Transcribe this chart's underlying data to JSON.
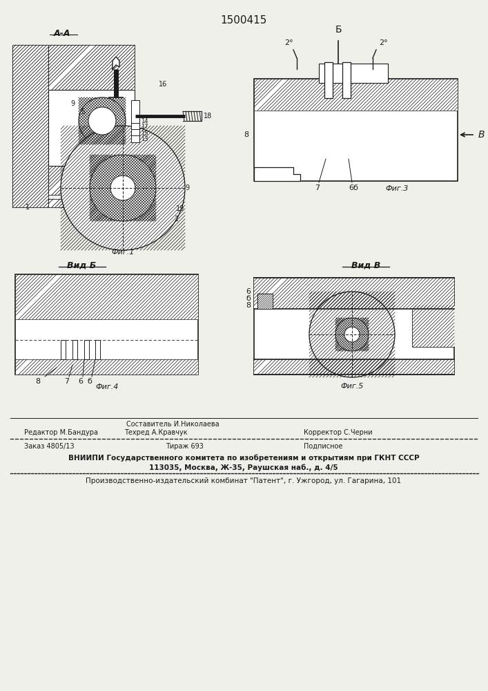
{
  "title": "1500415",
  "bg_color": "#f0f0eb",
  "line_color": "#1a1a1a",
  "fig1_label": "А-А",
  "fig1_caption": "Фиг.1",
  "fig3_caption": "Фиг.3",
  "fig4_label": "Вид Б",
  "fig4_caption": "Фиг.4",
  "fig5_label": "Вид В",
  "fig5_caption": "Фиг.5",
  "footer_line1_col1": "Редактор М.Бандура",
  "footer_line1_col2a": "Составитель И.Николаева",
  "footer_line1_col2b": "Техред А.Кравчук",
  "footer_line1_col3": "Корректор С.Черни",
  "footer_line2_col1": "Заказ 4805/13",
  "footer_line2_col2": "Тираж 693",
  "footer_line2_col3": "Подписное",
  "footer_line3": "ВНИИПИ Государственного комитета по изобретениям и открытиям при ГКНТ СССР",
  "footer_line4": "113035, Москва, Ж-35, Раушская наб., д. 4/5",
  "footer_line5": "Производственно-издательский комбинат \"Патент\", г. Ужгород, ул. Гагарина, 101"
}
